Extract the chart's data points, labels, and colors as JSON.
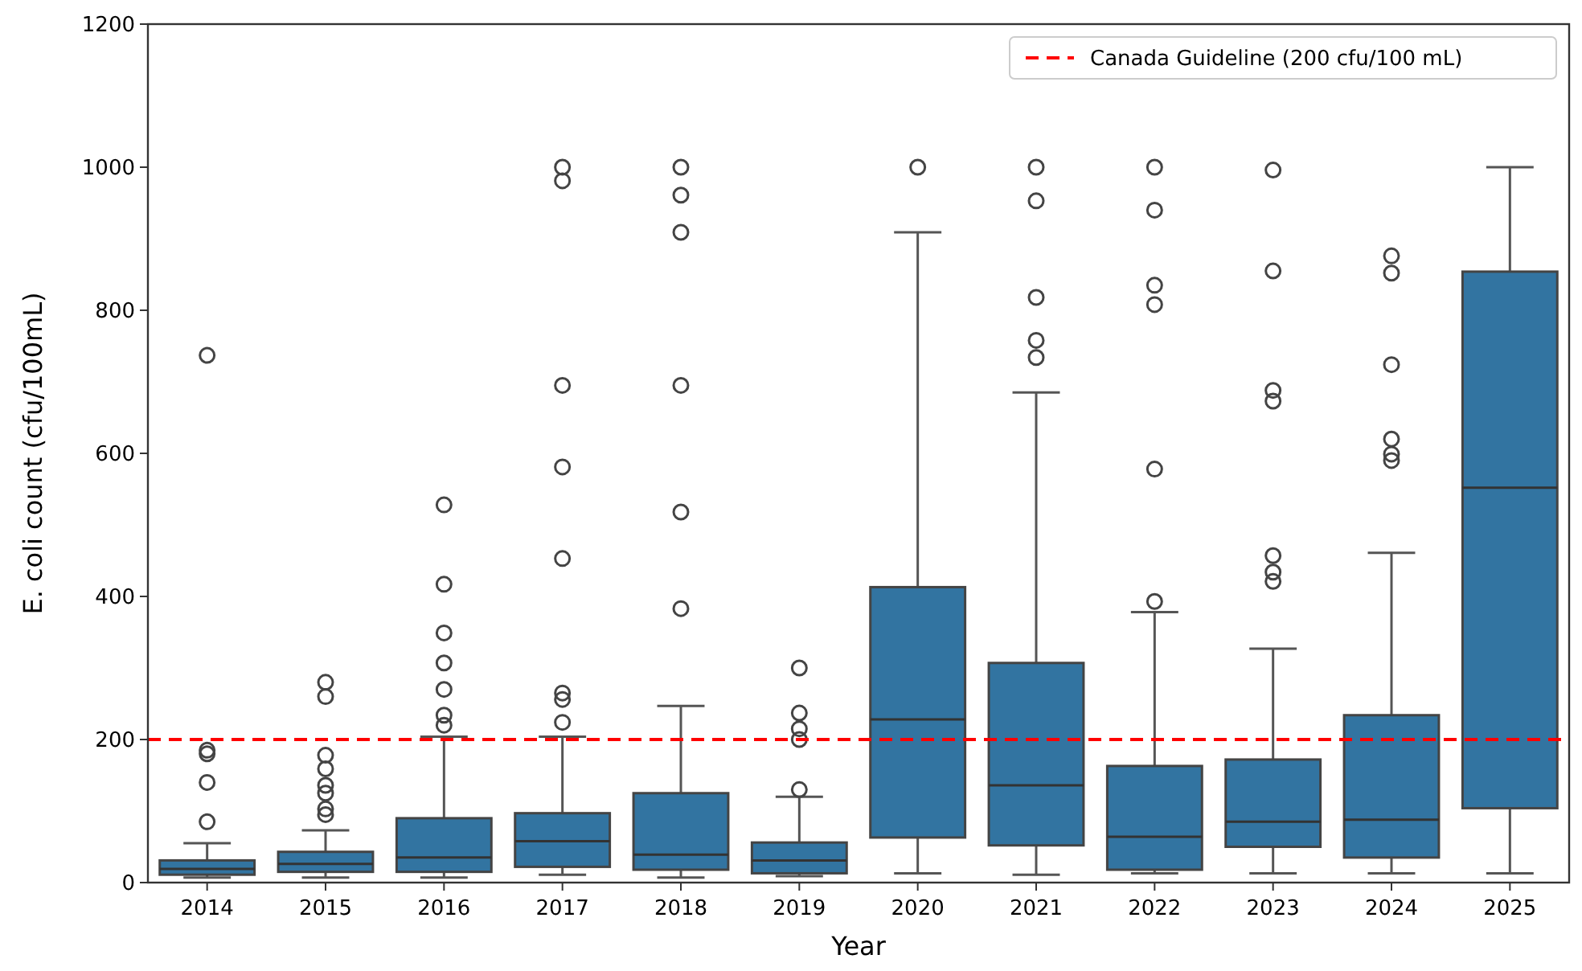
{
  "chart_data": {
    "type": "box",
    "xlabel": "Year",
    "ylabel": "E. coli count (cfu/100mL)",
    "color": "#3274a1",
    "categories": [
      "2014",
      "2015",
      "2016",
      "2017",
      "2018",
      "2019",
      "2020",
      "2021",
      "2022",
      "2023",
      "2024",
      "2025"
    ],
    "ylim": [
      0,
      1200
    ],
    "yticks": [
      0,
      200,
      400,
      600,
      800,
      1000,
      1200
    ],
    "grid": false,
    "legend": "top right",
    "ref_lines": [
      {
        "axis": "y",
        "value": 200,
        "label": "Canada Guideline (200 cfu/100 mL)",
        "color": "#ff0000",
        "line_style": "dashed"
      }
    ],
    "boxes": [
      {
        "low": 7,
        "q1": 11,
        "median": 19,
        "q3": 31,
        "high": 55,
        "outliers": [
          737,
          185,
          180,
          140,
          85
        ]
      },
      {
        "low": 7,
        "q1": 15,
        "median": 26,
        "q3": 43,
        "high": 73,
        "outliers": [
          280,
          260,
          178,
          159,
          136,
          125,
          103,
          95
        ]
      },
      {
        "low": 7,
        "q1": 15,
        "median": 35,
        "q3": 90,
        "high": 204,
        "outliers": [
          528,
          417,
          349,
          307,
          270,
          234,
          220
        ]
      },
      {
        "low": 11,
        "q1": 22,
        "median": 58,
        "q3": 97,
        "high": 204,
        "outliers": [
          1000,
          981,
          695,
          581,
          453,
          265,
          256,
          224
        ]
      },
      {
        "low": 7,
        "q1": 18,
        "median": 39,
        "q3": 125,
        "high": 247,
        "outliers": [
          1000,
          961,
          909,
          695,
          518,
          383
        ]
      },
      {
        "low": 9,
        "q1": 13,
        "median": 31,
        "q3": 56,
        "high": 120,
        "outliers": [
          300,
          237,
          215,
          200,
          130
        ]
      },
      {
        "low": 13,
        "q1": 63,
        "median": 228,
        "q3": 413,
        "high": 909,
        "outliers": [
          1000
        ]
      },
      {
        "low": 11,
        "q1": 52,
        "median": 136,
        "q3": 307,
        "high": 685,
        "outliers": [
          1000,
          953,
          818,
          758,
          734
        ]
      },
      {
        "low": 13,
        "q1": 18,
        "median": 64,
        "q3": 163,
        "high": 378,
        "outliers": [
          1000,
          940,
          835,
          808,
          578,
          393
        ]
      },
      {
        "low": 13,
        "q1": 50,
        "median": 85,
        "q3": 172,
        "high": 327,
        "outliers": [
          996,
          855,
          688,
          673,
          457,
          434,
          421
        ]
      },
      {
        "low": 13,
        "q1": 35,
        "median": 88,
        "q3": 234,
        "high": 461,
        "outliers": [
          876,
          852,
          724,
          620,
          599,
          590
        ]
      },
      {
        "low": 13,
        "q1": 104,
        "median": 552,
        "q3": 854,
        "high": 1000
      }
    ]
  }
}
